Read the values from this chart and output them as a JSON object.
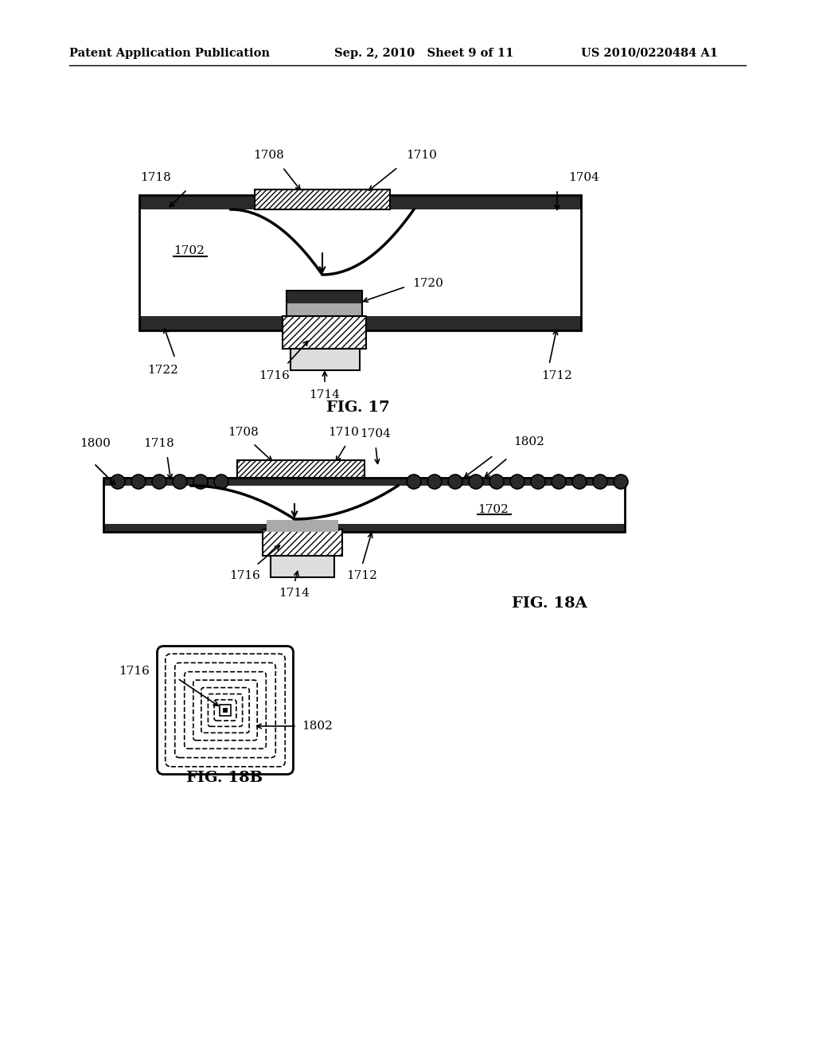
{
  "header_left": "Patent Application Publication",
  "header_mid": "Sep. 2, 2010   Sheet 9 of 11",
  "header_right": "US 2010/0220484 A1",
  "bg_color": "#ffffff",
  "line_color": "#000000",
  "dark_fill": "#2a2a2a",
  "gray_fill": "#aaaaaa",
  "light_gray": "#dddddd"
}
